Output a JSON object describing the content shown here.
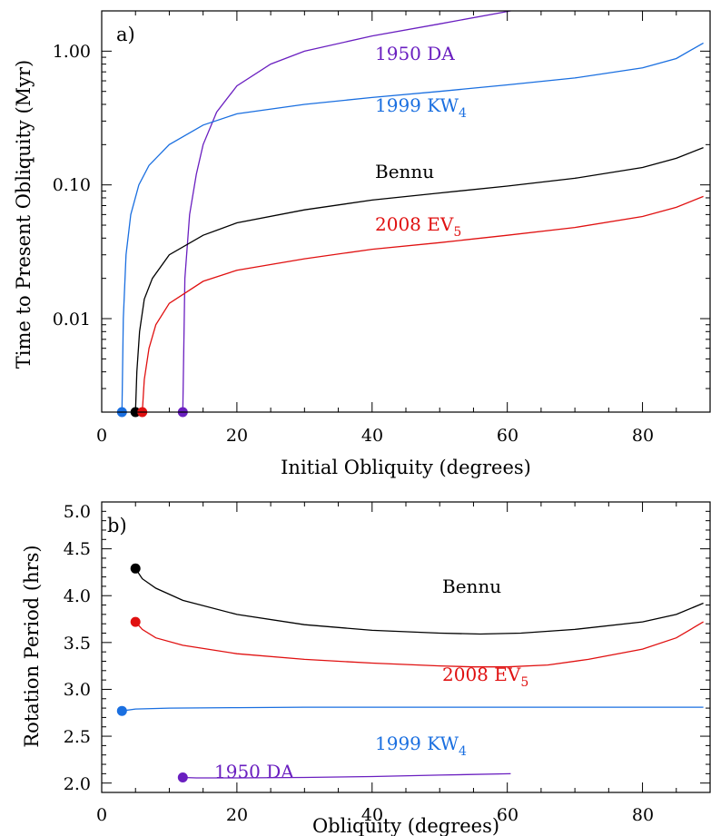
{
  "chart_data": [
    {
      "panel": "a)",
      "type": "line",
      "xlabel": "Initial Obliquity (degrees)",
      "ylabel": "Time to Present Obliquity (Myr)",
      "xlim": [
        0,
        90
      ],
      "ylim": [
        0.002,
        2.0
      ],
      "yscale": "log",
      "xticks": [
        "0",
        "20",
        "40",
        "60",
        "80"
      ],
      "yticks": [
        "0.01",
        "0.10",
        "1.00"
      ],
      "grid": false,
      "series": [
        {
          "name": "1950 DA",
          "color": "#6a1fc0",
          "x": [
            12,
            12.3,
            13,
            14,
            15,
            17,
            20,
            25,
            30,
            40,
            50,
            60.5
          ],
          "y": [
            0.002,
            0.02,
            0.06,
            0.12,
            0.2,
            0.35,
            0.55,
            0.8,
            1.0,
            1.3,
            1.6,
            2.0
          ],
          "marker_x": 12
        },
        {
          "name": "1999 KW",
          "sub": "4",
          "color": "#1a6fe0",
          "x": [
            3,
            3.2,
            3.6,
            4.3,
            5.5,
            7,
            10,
            15,
            20,
            30,
            40,
            50,
            60,
            70,
            80,
            85,
            89
          ],
          "y": [
            0.002,
            0.01,
            0.03,
            0.06,
            0.1,
            0.14,
            0.2,
            0.28,
            0.34,
            0.4,
            0.45,
            0.5,
            0.56,
            0.63,
            0.75,
            0.88,
            1.15
          ],
          "marker_x": 3
        },
        {
          "name": "Bennu",
          "color": "#000000",
          "x": [
            5,
            5.2,
            5.6,
            6.3,
            7.5,
            10,
            15,
            20,
            30,
            40,
            50,
            60,
            70,
            80,
            85,
            89
          ],
          "y": [
            0.002,
            0.004,
            0.008,
            0.014,
            0.02,
            0.03,
            0.042,
            0.052,
            0.065,
            0.077,
            0.087,
            0.098,
            0.112,
            0.135,
            0.158,
            0.19
          ],
          "marker_x": 5
        },
        {
          "name": "2008 EV",
          "sub": "5",
          "color": "#e01010",
          "x": [
            6,
            6.3,
            7,
            8,
            10,
            15,
            20,
            30,
            40,
            50,
            60,
            70,
            80,
            85,
            89
          ],
          "y": [
            0.002,
            0.0035,
            0.006,
            0.009,
            0.013,
            0.019,
            0.023,
            0.028,
            0.033,
            0.037,
            0.042,
            0.048,
            0.058,
            0.068,
            0.082
          ],
          "marker_x": 6
        }
      ]
    },
    {
      "panel": "b)",
      "type": "line",
      "xlabel": "Obliquity (degrees)",
      "ylabel": "Rotation Period (hrs)",
      "xlim": [
        0,
        90
      ],
      "ylim": [
        1.9,
        5.0
      ],
      "yscale": "linear",
      "xticks": [
        "0",
        "20",
        "40",
        "60",
        "80"
      ],
      "yticks": [
        "2.0",
        "2.5",
        "3.0",
        "3.5",
        "4.0",
        "4.5",
        "5.0"
      ],
      "grid": false,
      "series": [
        {
          "name": "Bennu",
          "color": "#000000",
          "x": [
            5,
            6,
            8,
            12,
            20,
            30,
            40,
            50,
            56,
            62,
            70,
            80,
            85,
            89
          ],
          "y": [
            4.29,
            4.18,
            4.08,
            3.95,
            3.8,
            3.69,
            3.63,
            3.6,
            3.59,
            3.6,
            3.64,
            3.72,
            3.8,
            3.92
          ],
          "marker": [
            5,
            4.29
          ]
        },
        {
          "name": "2008 EV",
          "sub": "5",
          "color": "#e01010",
          "x": [
            5,
            6,
            8,
            12,
            20,
            30,
            40,
            50,
            55,
            60,
            66,
            72,
            80,
            85,
            89
          ],
          "y": [
            3.72,
            3.64,
            3.55,
            3.47,
            3.38,
            3.32,
            3.28,
            3.25,
            3.24,
            3.24,
            3.26,
            3.32,
            3.43,
            3.55,
            3.72
          ],
          "marker": [
            5,
            3.72
          ]
        },
        {
          "name": "1999 KW",
          "sub": "4",
          "color": "#1a6fe0",
          "x": [
            3,
            5,
            10,
            20,
            30,
            40,
            50,
            60,
            70,
            80,
            89
          ],
          "y": [
            2.77,
            2.79,
            2.8,
            2.805,
            2.81,
            2.81,
            2.81,
            2.81,
            2.81,
            2.81,
            2.81
          ],
          "marker": [
            3,
            2.77
          ]
        },
        {
          "name": "1950 DA",
          "color": "#6a1fc0",
          "x": [
            12,
            14,
            20,
            30,
            40,
            50,
            60.5
          ],
          "y": [
            2.06,
            2.055,
            2.055,
            2.06,
            2.07,
            2.085,
            2.1
          ],
          "marker": [
            12,
            2.06
          ]
        }
      ]
    }
  ]
}
